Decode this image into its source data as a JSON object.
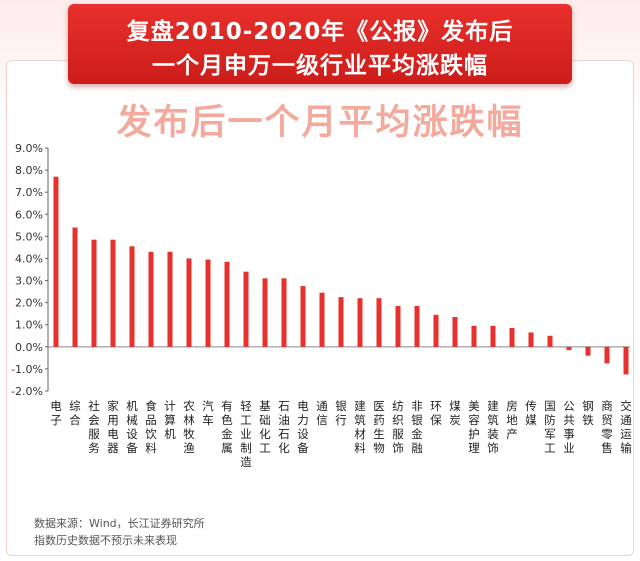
{
  "header": {
    "line1": "复盘2010-2020年《公报》发布后",
    "line2": "一个月申万一级行业平均涨跌幅"
  },
  "chart_data": {
    "type": "bar",
    "title": "发布后一个月平均涨跌幅",
    "categories": [
      "电子",
      "综合",
      "社会服务",
      "家用电器",
      "机械设备",
      "食品饮料",
      "计算机",
      "农林牧渔",
      "汽车",
      "有色金属",
      "轻工业制造",
      "基础化工",
      "石油石化",
      "电力设备",
      "通信",
      "银行",
      "建筑材料",
      "医药生物",
      "纺织服饰",
      "非银金融",
      "环保",
      "煤炭",
      "美容护理",
      "建筑装饰",
      "房地产",
      "传媒",
      "国防军工",
      "公共事业",
      "钢铁",
      "商贸零售",
      "交通运输"
    ],
    "values": [
      7.7,
      5.4,
      4.85,
      4.85,
      4.55,
      4.3,
      4.3,
      4.0,
      3.95,
      3.85,
      3.4,
      3.1,
      3.1,
      2.75,
      2.45,
      2.25,
      2.2,
      2.2,
      1.85,
      1.85,
      1.45,
      1.35,
      0.95,
      0.95,
      0.85,
      0.65,
      0.5,
      -0.15,
      -0.4,
      -0.75,
      -1.25
    ],
    "ylim": [
      -2.0,
      9.0
    ],
    "ytick_step": 1.0,
    "ytick_labels": [
      "9.0%",
      "8.0%",
      "7.0%",
      "6.0%",
      "5.0%",
      "4.0%",
      "3.0%",
      "2.0%",
      "1.0%",
      "0.0%",
      "-1.0%",
      "-2.0%"
    ],
    "xlabel": "",
    "ylabel": "",
    "grid": false,
    "legend": "none",
    "bar_color": "#e8302c"
  },
  "footer": {
    "source": "数据来源：Wind，长江证券研究所",
    "disclaimer": "指数历史数据不预示未来表现"
  }
}
